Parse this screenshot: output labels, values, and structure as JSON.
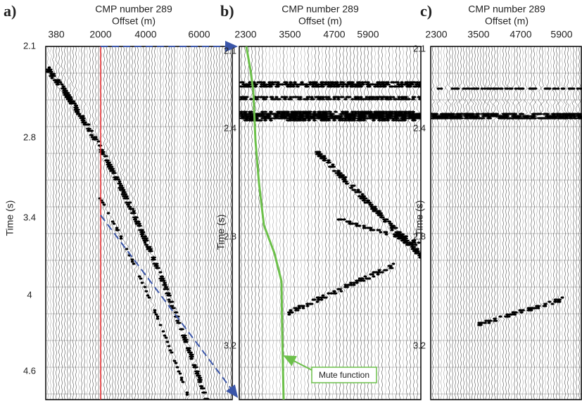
{
  "panels": [
    {
      "label": "a)",
      "title": "CMP number 289",
      "subtitle": "Offset (m)",
      "x_tick_labels": [
        "380",
        "2000",
        "4000",
        "6000"
      ],
      "y_tick_labels": [
        "2.1",
        "2.8",
        "3.4",
        "4",
        "4.6"
      ],
      "y_axis_label": "Time (s)"
    },
    {
      "label": "b)",
      "title": "CMP number 289",
      "subtitle": "Offset (m)",
      "x_tick_labels": [
        "2300",
        "3500",
        "4700",
        "5900"
      ],
      "y_tick_labels": [
        "2.1",
        "2.4",
        "2.8",
        "3.2"
      ],
      "y_axis_label": "Time (s)",
      "annotation": "Mute function"
    },
    {
      "label": "c)",
      "title": "CMP number 289",
      "subtitle": "Offset (m)",
      "x_tick_labels": [
        "2300",
        "3500",
        "4700",
        "5900"
      ],
      "y_tick_labels": [
        "2.1",
        "2.4",
        "2.8",
        "3.2"
      ],
      "y_axis_label": "Time (s)"
    }
  ]
}
